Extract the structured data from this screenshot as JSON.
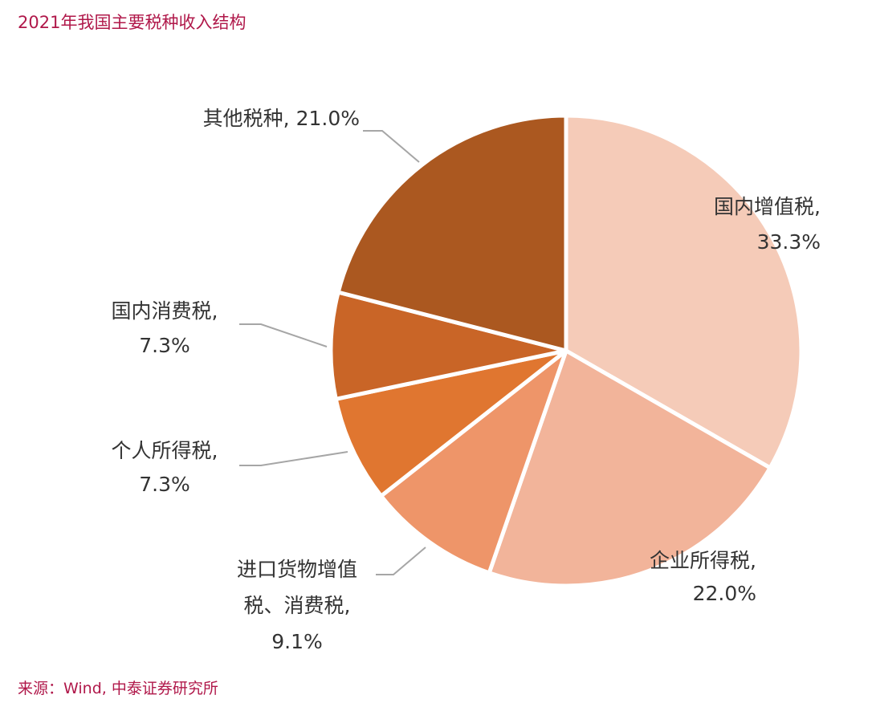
{
  "title": "2021年我国主要税种收入结构",
  "source": "来源：Wind, 中泰证券研究所",
  "chart_data": {
    "type": "pie",
    "title": "2021年我国主要税种收入结构",
    "slices": [
      {
        "name": "国内增值税",
        "value": 33.3,
        "label_lines": [
          "国内增值税,",
          "33.3%"
        ],
        "color": "#f5cbb8"
      },
      {
        "name": "企业所得税",
        "value": 22.0,
        "label_lines": [
          "企业所得税,",
          "22.0%"
        ],
        "color": "#f2b49a"
      },
      {
        "name": "进口货物增值税、消费税",
        "value": 9.1,
        "label_lines": [
          "进口货物增值",
          "税、消费税,",
          "9.1%"
        ],
        "color": "#ee9569"
      },
      {
        "name": "个人所得税",
        "value": 7.3,
        "label_lines": [
          "个人所得税,",
          "7.3%"
        ],
        "color": "#e07630"
      },
      {
        "name": "国内消费税",
        "value": 7.3,
        "label_lines": [
          "国内消费税,",
          "7.3%"
        ],
        "color": "#c96527"
      },
      {
        "name": "其他税种",
        "value": 21.0,
        "label_lines": [
          "其他税种, 21.0%"
        ],
        "color": "#ab5820"
      }
    ],
    "start_angle_deg": 0,
    "direction": "clockwise",
    "unit": "%"
  }
}
